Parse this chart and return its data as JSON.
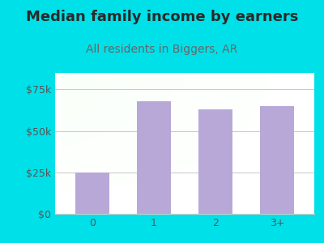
{
  "title": "Median family income by earners",
  "subtitle": "All residents in Biggers, AR",
  "categories": [
    "0",
    "1",
    "2",
    "3+"
  ],
  "values": [
    25000,
    68000,
    63000,
    65000
  ],
  "bar_color": "#b8a8d8",
  "background_outer": "#00e0e8",
  "title_color": "#2a2a2a",
  "subtitle_color": "#666666",
  "axis_label_color": "#555555",
  "grid_color": "#cccccc",
  "ylim": [
    0,
    85000
  ],
  "yticks": [
    0,
    25000,
    50000,
    75000
  ],
  "ytick_labels": [
    "$0",
    "$25k",
    "$50k",
    "$75k"
  ],
  "title_fontsize": 13,
  "subtitle_fontsize": 10,
  "tick_fontsize": 9
}
